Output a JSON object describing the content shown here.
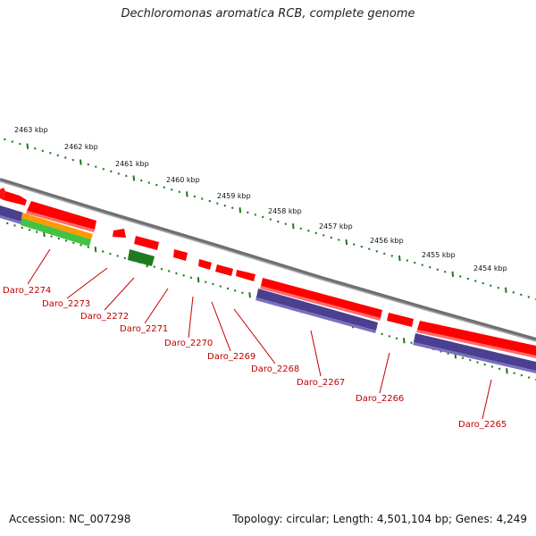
{
  "title": "Dechloromonas aromatica RCB, complete genome",
  "footer": {
    "accession": "Accession: NC_007298",
    "info": "Topology: circular; Length: 4,501,104 bp; Genes: 4,249"
  },
  "kbp_labels": [
    "2463 kbp",
    "2462 kbp",
    "2461 kbp",
    "2460 kbp",
    "2459 kbp",
    "2458 kbp",
    "2457 kbp",
    "2456 kbp",
    "2455 kbp",
    "2454 kbp"
  ],
  "genes": [
    "Daro_2274",
    "Daro_2273",
    "Daro_2272",
    "Daro_2271",
    "Daro_2270",
    "Daro_2269",
    "Daro_2268",
    "Daro_2267",
    "Daro_2266",
    "Daro_2265"
  ],
  "colors": {
    "forward": "#ff0000",
    "reverse": "#4b3f8f",
    "backbone": "#808080",
    "tick": "#1a7a1a",
    "label": "#c00000"
  }
}
